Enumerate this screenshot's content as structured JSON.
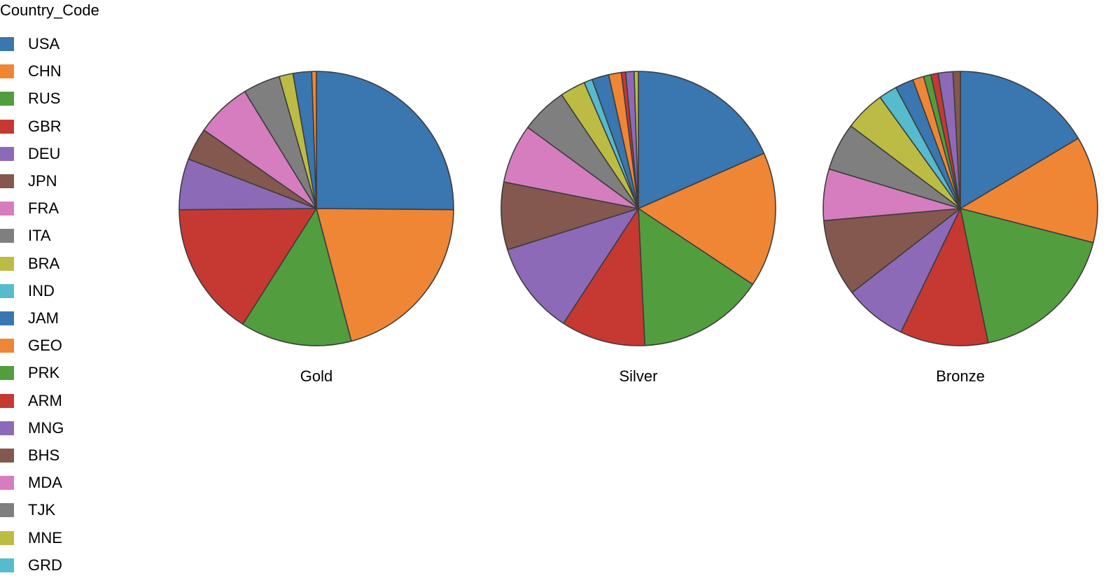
{
  "chart_data": {
    "type": "pie",
    "legend_title": "Country_Code",
    "legend_placement": "left",
    "categories": [
      "USA",
      "CHN",
      "RUS",
      "GBR",
      "DEU",
      "JPN",
      "FRA",
      "ITA",
      "BRA",
      "IND",
      "JAM",
      "GEO",
      "PRK",
      "ARM",
      "MNG",
      "BHS",
      "MDA",
      "TJK",
      "MNE",
      "GRD"
    ],
    "colors": [
      "#3a76af",
      "#ef8636",
      "#529e3e",
      "#c53932",
      "#8d6ab8",
      "#84584e",
      "#d57dbf",
      "#7f7f7f",
      "#bcbc45",
      "#56bbcc",
      "#3a76af",
      "#ef8636",
      "#529e3e",
      "#c53932",
      "#8d6ab8",
      "#84584e",
      "#d57dbf",
      "#7f7f7f",
      "#bcbc45",
      "#56bbcc"
    ],
    "series": [
      {
        "name": "Gold",
        "values": [
          46,
          38,
          24,
          29,
          11,
          7,
          12,
          8,
          3,
          0,
          4,
          1,
          0,
          0,
          0,
          0,
          0,
          0,
          0,
          0
        ]
      },
      {
        "name": "Silver",
        "values": [
          37,
          32,
          30,
          20,
          22,
          16,
          14,
          11,
          6,
          2,
          4,
          3,
          0,
          1,
          2,
          0,
          0,
          0,
          1,
          0
        ]
      },
      {
        "name": "Bronze",
        "values": [
          38,
          29,
          41,
          24,
          17,
          21,
          14,
          13,
          11,
          5,
          5,
          3,
          2,
          2,
          4,
          2,
          0,
          0,
          0,
          0
        ]
      }
    ]
  }
}
